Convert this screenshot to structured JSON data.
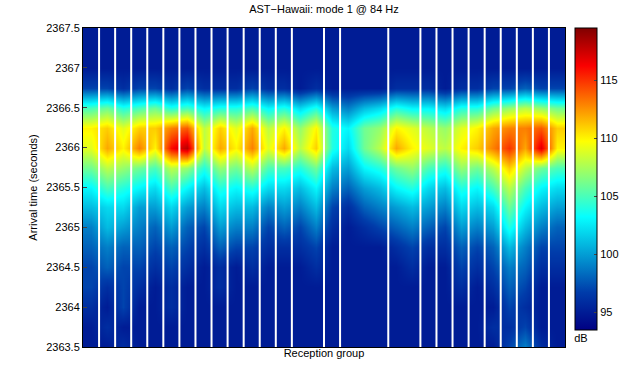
{
  "chart_data": {
    "type": "heatmap",
    "title": "AST−Hawaii: mode 1 @ 84 Hz",
    "x_label": "Reception group",
    "y_label": "Arrival time (seconds)",
    "colorbar_label": "dB",
    "tick_labels": "y",
    "grid": false,
    "xlim": [
      0.5,
      30.5
    ],
    "ylim": [
      2363.5,
      2367.5
    ],
    "yticks": [
      2363.5,
      2364,
      2364.5,
      2365,
      2365.5,
      2366,
      2366.5,
      2367,
      2367.5
    ],
    "zlim": [
      93.5,
      119.5
    ],
    "zticks": [
      95,
      100,
      105,
      110,
      115
    ],
    "group_boundaries": [
      1.5,
      2.5,
      3.5,
      4.5,
      5.5,
      6.5,
      7.5,
      8.5,
      9.5,
      10.5,
      11.5,
      12.5,
      13.5,
      15.5,
      16.5,
      19.5,
      21.5,
      22.5,
      23.5,
      24.5,
      25.5,
      26.5,
      27.5,
      28.5,
      29.5
    ],
    "cells": {
      "x": [
        1,
        2,
        3,
        4,
        5,
        6,
        7,
        8,
        9,
        10,
        11,
        12,
        13,
        14,
        15,
        16,
        17,
        18,
        19,
        20,
        21,
        22,
        23,
        24,
        25,
        26,
        27,
        28,
        29,
        30
      ],
      "y": [
        2363.5,
        2363.75,
        2364,
        2364.25,
        2364.5,
        2364.75,
        2365,
        2365.25,
        2365.5,
        2365.75,
        2366,
        2366.25,
        2366.5,
        2366.75,
        2367,
        2367.25,
        2367.5
      ],
      "z": [
        [
          95,
          95,
          96,
          95,
          95,
          95,
          95,
          95,
          95,
          95,
          95,
          95,
          95,
          95,
          95,
          95,
          95,
          95,
          95,
          95,
          95,
          95,
          95,
          95,
          95,
          95,
          97,
          99,
          96,
          95
        ],
        [
          95,
          96,
          95,
          95,
          95,
          95,
          95,
          95,
          95,
          95,
          95,
          95,
          95,
          95,
          95,
          95,
          95,
          95,
          95,
          95,
          95,
          95,
          95,
          95,
          95,
          96,
          96,
          97,
          95,
          95
        ],
        [
          96,
          95,
          97,
          95,
          95,
          96,
          95,
          95,
          95,
          95,
          95,
          95,
          95,
          95,
          95,
          95,
          95,
          95,
          95,
          95,
          95,
          95,
          95,
          95,
          95,
          95,
          97,
          96,
          95,
          95
        ],
        [
          97,
          96,
          97,
          96,
          95,
          96,
          95,
          95,
          96,
          95,
          95,
          95,
          95,
          95,
          95,
          95,
          95,
          95,
          95,
          95,
          95,
          95,
          95,
          96,
          95,
          96,
          98,
          97,
          95,
          95
        ],
        [
          97,
          98,
          97,
          97,
          96,
          97,
          96,
          95,
          96,
          95,
          96,
          95,
          95,
          95,
          96,
          95,
          95,
          95,
          95,
          95,
          96,
          95,
          95,
          97,
          96,
          97,
          99,
          98,
          96,
          96
        ],
        [
          98,
          99,
          98,
          98,
          97,
          98,
          97,
          96,
          98,
          97,
          97,
          96,
          96,
          96,
          97,
          95,
          95,
          95,
          95,
          96,
          97,
          96,
          96,
          98,
          97,
          98,
          101,
          99,
          97,
          97
        ],
        [
          99,
          101,
          100,
          99,
          98,
          100,
          98,
          97,
          100,
          99,
          99,
          97,
          98,
          97,
          99,
          96,
          95,
          96,
          97,
          98,
          99,
          98,
          97,
          100,
          99,
          100,
          104,
          101,
          99,
          98
        ],
        [
          101,
          102,
          102,
          100,
          100,
          102,
          100,
          99,
          102,
          101,
          101,
          99,
          100,
          99,
          101,
          97,
          96,
          98,
          99,
          100,
          101,
          100,
          99,
          102,
          101,
          102,
          106,
          103,
          101,
          100
        ],
        [
          103,
          105,
          104,
          103,
          102,
          105,
          103,
          101,
          104,
          103,
          104,
          102,
          102,
          101,
          103,
          99,
          98,
          100,
          101,
          103,
          104,
          102,
          101,
          104,
          103,
          105,
          108,
          105,
          103,
          102
        ],
        [
          106,
          108,
          107,
          106,
          105,
          108,
          107,
          104,
          107,
          106,
          108,
          105,
          105,
          104,
          106,
          101,
          100,
          103,
          104,
          106,
          107,
          105,
          104,
          107,
          106,
          108,
          111,
          108,
          106,
          105
        ],
        [
          109,
          112,
          110,
          113,
          110,
          116,
          118,
          108,
          112,
          110,
          113,
          109,
          112,
          108,
          111,
          104,
          102,
          106,
          108,
          112,
          110,
          109,
          108,
          110,
          111,
          113,
          115,
          112,
          117,
          110
        ],
        [
          110,
          111,
          109,
          111,
          111,
          113,
          114,
          108,
          111,
          109,
          112,
          108,
          110,
          107,
          110,
          104,
          103,
          106,
          107,
          110,
          109,
          108,
          107,
          109,
          110,
          112,
          113,
          113,
          114,
          111
        ],
        [
          105,
          106,
          104,
          105,
          106,
          104,
          105,
          103,
          104,
          104,
          105,
          103,
          104,
          102,
          104,
          100,
          99,
          101,
          102,
          104,
          103,
          103,
          102,
          104,
          104,
          106,
          107,
          108,
          107,
          106
        ],
        [
          97,
          97,
          96,
          97,
          97,
          96,
          97,
          96,
          96,
          96,
          97,
          96,
          96,
          95,
          96,
          95,
          95,
          95,
          95,
          96,
          96,
          96,
          95,
          96,
          96,
          97,
          97,
          98,
          97,
          97
        ],
        [
          95,
          95,
          95,
          95,
          95,
          95,
          95,
          95,
          95,
          95,
          95,
          95,
          95,
          95,
          95,
          95,
          95,
          95,
          95,
          95,
          95,
          95,
          95,
          95,
          95,
          95,
          95,
          95,
          95,
          95
        ],
        [
          95,
          95,
          95,
          95,
          95,
          95,
          95,
          95,
          95,
          95,
          95,
          95,
          95,
          95,
          95,
          95,
          95,
          95,
          95,
          95,
          95,
          95,
          95,
          95,
          95,
          95,
          95,
          95,
          95,
          95
        ],
        [
          95,
          95,
          95,
          95,
          95,
          95,
          95,
          95,
          95,
          95,
          95,
          95,
          95,
          95,
          95,
          95,
          95,
          95,
          95,
          95,
          95,
          95,
          95,
          95,
          95,
          95,
          95,
          95,
          95,
          95
        ]
      ]
    }
  }
}
